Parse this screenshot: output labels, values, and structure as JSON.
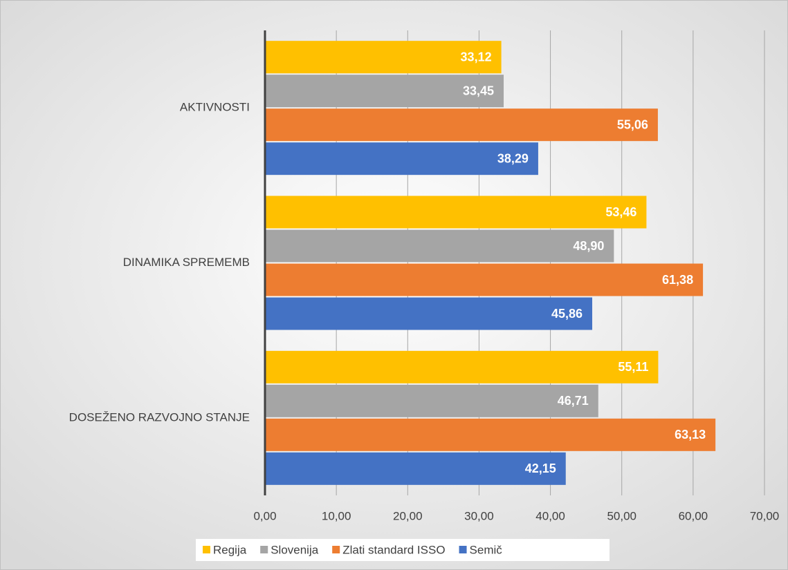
{
  "chart_data": {
    "type": "barh",
    "categories": [
      "AKTIVNOSTI",
      "DINAMIKA SPREMEMB",
      "DOSEŽENO RAZVOJNO STANJE"
    ],
    "series": [
      {
        "name": "Regija",
        "color": "#ffc000",
        "values": [
          33.12,
          53.46,
          55.11
        ],
        "value_labels": [
          "33,12",
          "53,46",
          "55,11"
        ]
      },
      {
        "name": "Slovenija",
        "color": "#a5a5a5",
        "values": [
          33.45,
          48.9,
          46.71
        ],
        "value_labels": [
          "33,45",
          "48,90",
          "46,71"
        ]
      },
      {
        "name": "Zlati standard ISSO",
        "color": "#ed7d31",
        "values": [
          55.06,
          61.38,
          63.13
        ],
        "value_labels": [
          "55,06",
          "61,38",
          "63,13"
        ]
      },
      {
        "name": "Semič",
        "color": "#4472c4",
        "values": [
          38.29,
          45.86,
          42.15
        ],
        "value_labels": [
          "38,29",
          "45,86",
          "42,15"
        ]
      }
    ],
    "xlim": [
      0,
      70
    ],
    "xticks": [
      {
        "value": 0,
        "label": "0,00"
      },
      {
        "value": 10,
        "label": "10,00"
      },
      {
        "value": 20,
        "label": "20,00"
      },
      {
        "value": 30,
        "label": "30,00"
      },
      {
        "value": 40,
        "label": "40,00"
      },
      {
        "value": 50,
        "label": "50,00"
      },
      {
        "value": 60,
        "label": "60,00"
      },
      {
        "value": 70,
        "label": "70,00"
      }
    ],
    "grid": true,
    "legend": "bottom"
  }
}
